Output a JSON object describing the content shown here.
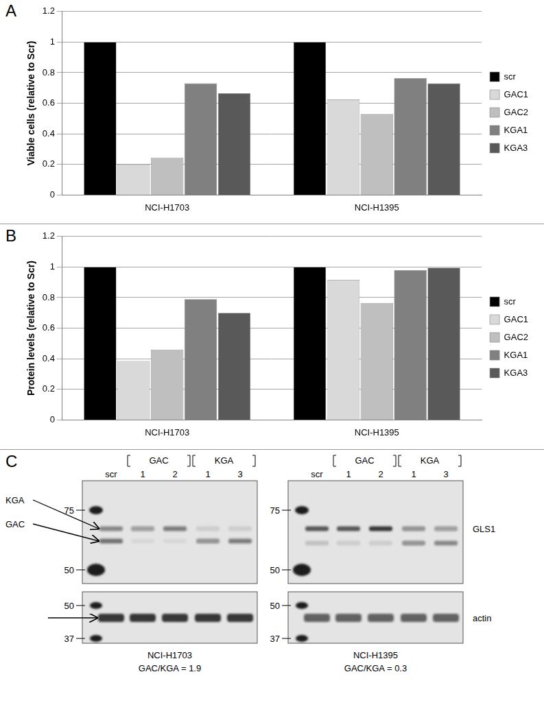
{
  "panel_labels": [
    "A",
    "B",
    "C"
  ],
  "chart_data": [
    {
      "type": "bar",
      "categories": [
        "NCI-H1703",
        "NCI-H1395"
      ],
      "y_label": "Viable cells (relative to Scr)",
      "ylim": [
        0,
        1.2
      ],
      "yticks": [
        0,
        0.2,
        0.4,
        0.6,
        0.8,
        1,
        1.2
      ],
      "grid": true,
      "legend": "right",
      "series": [
        {
          "name": "scr",
          "color": "#000000",
          "values": [
            1,
            1
          ]
        },
        {
          "name": "GAC1",
          "color": "#d9d9d9",
          "values": [
            0.2,
            0.625
          ]
        },
        {
          "name": "GAC2",
          "color": "#bfbfbf",
          "values": [
            0.245,
            0.53
          ]
        },
        {
          "name": "KGA1",
          "color": "#808080",
          "values": [
            0.73,
            0.765
          ]
        },
        {
          "name": "KGA3",
          "color": "#595959",
          "values": [
            0.665,
            0.73
          ]
        }
      ]
    },
    {
      "type": "bar",
      "categories": [
        "NCI-H1703",
        "NCI-H1395"
      ],
      "y_label": "Protein levels (relative to Scr)",
      "ylim": [
        0,
        1.2
      ],
      "yticks": [
        0,
        0.2,
        0.4,
        0.6,
        0.8,
        1,
        1.2
      ],
      "grid": true,
      "legend": "right",
      "series": [
        {
          "name": "scr",
          "color": "#000000",
          "values": [
            1,
            1
          ]
        },
        {
          "name": "GAC1",
          "color": "#d9d9d9",
          "values": [
            0.385,
            0.915
          ]
        },
        {
          "name": "GAC2",
          "color": "#bfbfbf",
          "values": [
            0.46,
            0.765
          ]
        },
        {
          "name": "KGA1",
          "color": "#808080",
          "values": [
            0.79,
            0.98
          ]
        },
        {
          "name": "KGA3",
          "color": "#595959",
          "values": [
            0.7,
            0.995
          ]
        }
      ]
    }
  ],
  "panel_c": {
    "groups": [
      "GAC",
      "KGA"
    ],
    "lanes": [
      "scr",
      "1",
      "2",
      "1",
      "3"
    ],
    "gls1_label": "GLS1",
    "actin_label": "actin",
    "gls1_markers": [
      75,
      50
    ],
    "actin_markers": [
      50,
      37
    ],
    "band_labels": [
      "KGA",
      "GAC"
    ],
    "blots": [
      {
        "caption": "NCI-H1703",
        "ratio_text": "GAC/KGA = 1.9",
        "gls1_bands": {
          "KGA": [
            0.45,
            0.35,
            0.5,
            0.1,
            0.1
          ],
          "GAC": [
            0.55,
            0.05,
            0.05,
            0.4,
            0.5
          ]
        },
        "actin_band": [
          0.85,
          0.85,
          0.85,
          0.85,
          0.85
        ]
      },
      {
        "caption": "NCI-H1395",
        "ratio_text": "GAC/KGA = 0.3",
        "gls1_bands": {
          "KGA": [
            0.7,
            0.7,
            0.85,
            0.4,
            0.35
          ],
          "GAC": [
            0.15,
            0.1,
            0.1,
            0.4,
            0.45
          ]
        },
        "actin_band": [
          0.65,
          0.65,
          0.65,
          0.65,
          0.65
        ]
      }
    ]
  }
}
